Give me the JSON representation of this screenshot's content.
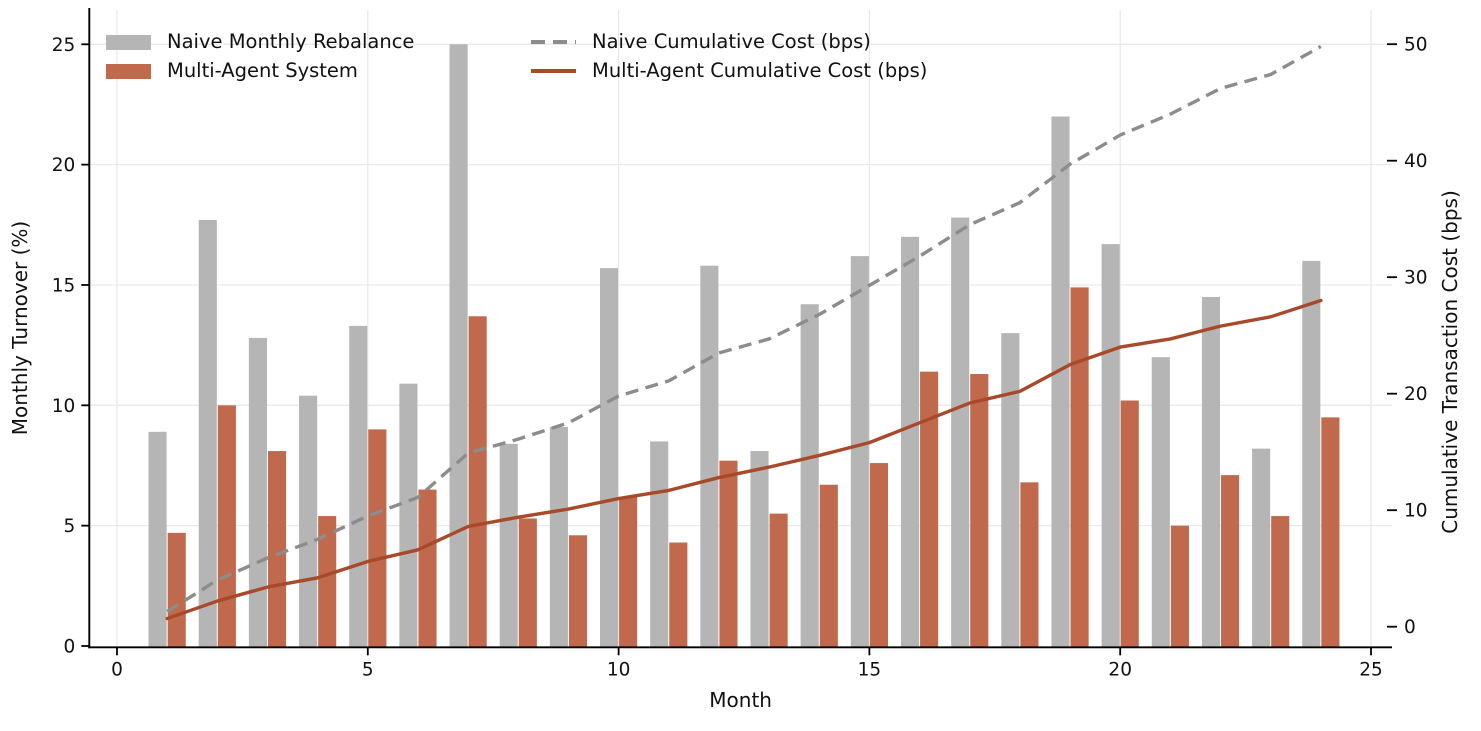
{
  "chart_data": {
    "type": "bar",
    "title": "",
    "xlabel": "Month",
    "ylabel_left": "Monthly Turnover (%)",
    "ylabel_right": "Cumulative Transaction Cost (bps)",
    "months": [
      1,
      2,
      3,
      4,
      5,
      6,
      7,
      8,
      9,
      10,
      11,
      12,
      13,
      14,
      15,
      16,
      17,
      18,
      19,
      20,
      21,
      22,
      23,
      24
    ],
    "x_ticks": [
      0,
      5,
      10,
      15,
      20,
      25
    ],
    "y_ticks_left": [
      0,
      5,
      10,
      15,
      20,
      25
    ],
    "y_ticks_right": [
      0,
      10,
      20,
      30,
      40,
      50
    ],
    "xlim": [
      -0.56,
      25.42
    ],
    "ylim_left": [
      0,
      26.4
    ],
    "ylim_right": [
      -1.8,
      52.9
    ],
    "grid": true,
    "legend_position": "upper-left-two-columns",
    "series": [
      {
        "name": "Naive Monthly Rebalance",
        "kind": "bar",
        "axis": "left",
        "color": "#b5b5b5",
        "values": [
          8.9,
          17.7,
          12.8,
          10.4,
          13.3,
          10.9,
          25.0,
          8.4,
          9.1,
          15.7,
          8.5,
          15.8,
          8.1,
          14.2,
          16.2,
          17.0,
          17.8,
          13.0,
          22.0,
          16.7,
          12.0,
          14.5,
          8.2,
          16.0
        ]
      },
      {
        "name": "Multi-Agent System",
        "kind": "bar",
        "axis": "left",
        "color": "#c1694c",
        "values": [
          4.7,
          10.0,
          8.1,
          5.4,
          9.0,
          6.5,
          13.7,
          5.3,
          4.6,
          6.2,
          4.3,
          7.7,
          5.5,
          6.7,
          7.6,
          11.4,
          11.3,
          6.8,
          14.9,
          10.2,
          5.0,
          7.1,
          5.4,
          9.5
        ]
      },
      {
        "name": "Naive Cumulative Cost (bps)",
        "kind": "line",
        "style": "dashed",
        "axis": "right",
        "color": "#8c8c8c",
        "values": [
          1.3,
          4.0,
          5.9,
          7.5,
          9.5,
          11.1,
          14.9,
          16.1,
          17.5,
          19.8,
          21.1,
          23.5,
          24.7,
          26.8,
          29.3,
          31.8,
          34.5,
          36.4,
          39.7,
          42.2,
          44.0,
          46.2,
          47.4,
          49.8
        ]
      },
      {
        "name": "Multi-Agent Cumulative Cost (bps)",
        "kind": "line",
        "style": "solid",
        "axis": "right",
        "color": "#a8492a",
        "values": [
          0.7,
          2.2,
          3.4,
          4.2,
          5.6,
          6.6,
          8.6,
          9.4,
          10.1,
          11.0,
          11.7,
          12.8,
          13.7,
          14.7,
          15.8,
          17.5,
          19.2,
          20.2,
          22.5,
          24.0,
          24.7,
          25.8,
          26.6,
          28.0
        ]
      }
    ],
    "style": {
      "grid_color": "#e9e9e9",
      "spine_color": "#000000",
      "text_color": "#111111",
      "background": "#ffffff"
    }
  }
}
